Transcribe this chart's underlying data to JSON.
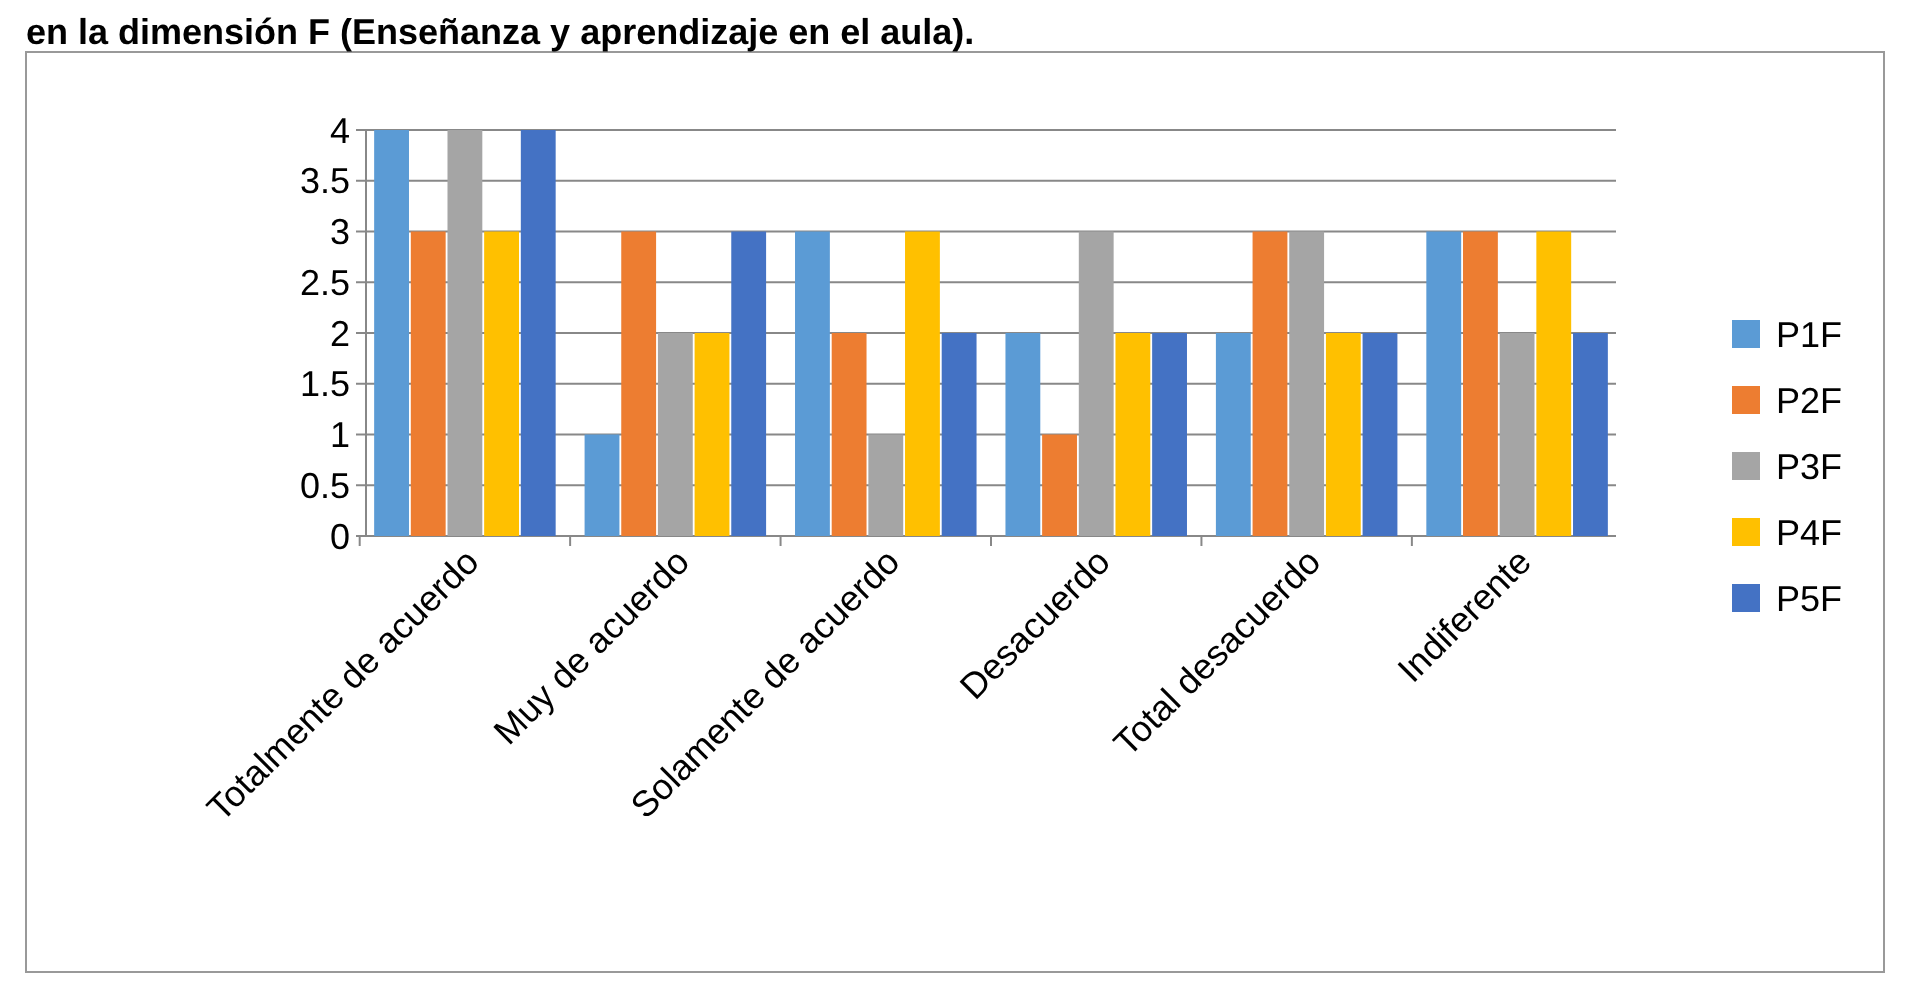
{
  "chart_data": {
    "type": "bar",
    "title": "en la dimensión F (Enseñanza y aprendizaje en el aula).",
    "categories": [
      "Totalmente de acuerdo",
      "Muy de acuerdo",
      "Solamente de acuerdo",
      "Desacuerdo",
      "Total desacuerdo",
      "Indiferente"
    ],
    "series": [
      {
        "name": "P1F",
        "color": "#5b9bd5",
        "values": [
          4,
          1,
          3,
          2,
          2,
          3
        ]
      },
      {
        "name": "P2F",
        "color": "#ed7d31",
        "values": [
          3,
          3,
          2,
          1,
          3,
          3
        ]
      },
      {
        "name": "P3F",
        "color": "#a5a5a5",
        "values": [
          4,
          2,
          1,
          3,
          3,
          2
        ]
      },
      {
        "name": "P4F",
        "color": "#ffc000",
        "values": [
          3,
          2,
          3,
          2,
          2,
          3
        ]
      },
      {
        "name": "P5F",
        "color": "#4472c4",
        "values": [
          4,
          3,
          2,
          2,
          2,
          2
        ]
      }
    ],
    "ylim": [
      0,
      4
    ],
    "yticks": [
      0,
      0.5,
      1,
      1.5,
      2,
      2.5,
      3,
      3.5,
      4
    ],
    "grid": "y",
    "legend": "right"
  }
}
